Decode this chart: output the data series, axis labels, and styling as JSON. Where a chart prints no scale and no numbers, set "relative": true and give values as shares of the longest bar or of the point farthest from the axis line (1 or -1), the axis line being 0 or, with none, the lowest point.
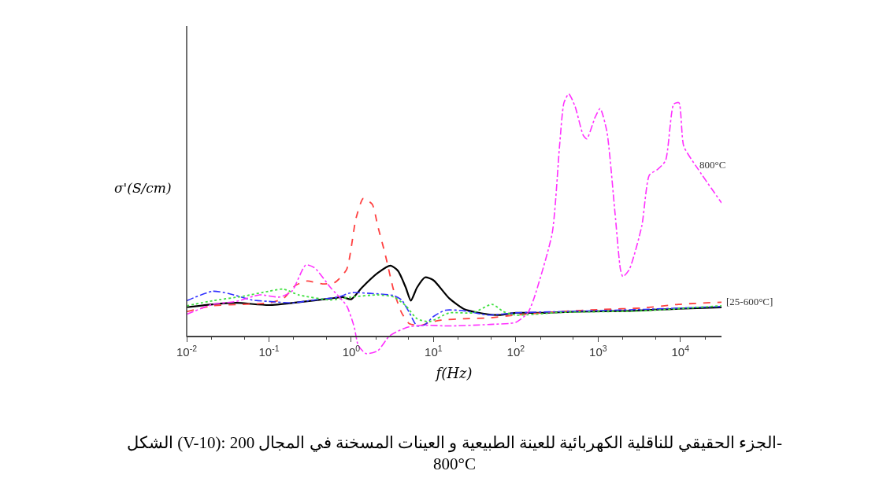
{
  "chart_data": {
    "type": "line",
    "relative": true,
    "xlabel": "f(Hz)",
    "ylabel": "σ'(S/cm)",
    "log": "x",
    "marker": "none",
    "xlim": [
      0.01,
      31623
    ],
    "xticks": [
      {
        "value": 0.01,
        "label": "10$^{-2}$"
      },
      {
        "value": 0.1,
        "label": "10$^{-1}$"
      },
      {
        "value": 1,
        "label": "10$^{0}$"
      },
      {
        "value": 10,
        "label": "10$^{1}$"
      },
      {
        "value": 100,
        "label": "10$^{2}$"
      },
      {
        "value": 1000,
        "label": "10$^{3}$"
      },
      {
        "value": 10000,
        "label": "10$^{4}$"
      }
    ],
    "series": [
      {
        "color": "#000000",
        "line_style": "solid",
        "x": [
          0.01,
          0.0207,
          0.04,
          0.1,
          0.23,
          0.56,
          0.78,
          1.0,
          1.35,
          2.1,
          3.0,
          3.7,
          4.6,
          5.3,
          6.3,
          7.9,
          10,
          15.6,
          24,
          46,
          63,
          100,
          217,
          525,
          2400,
          9500,
          31623
        ],
        "values": [
          0.122,
          0.134,
          0.14,
          0.131,
          0.143,
          0.158,
          0.164,
          0.155,
          0.203,
          0.263,
          0.293,
          0.272,
          0.203,
          0.149,
          0.203,
          0.245,
          0.233,
          0.158,
          0.113,
          0.093,
          0.09,
          0.099,
          0.099,
          0.104,
          0.107,
          0.116,
          0.122
        ]
      },
      {
        "color": "#ff4040",
        "line_style": "dashed",
        "x": [
          0.01,
          0.0207,
          0.048,
          0.1,
          0.15,
          0.21,
          0.29,
          0.45,
          0.63,
          0.88,
          1.14,
          1.4,
          1.8,
          2.1,
          2.6,
          3.3,
          4.1,
          5.1,
          7.1,
          8.9,
          12.4,
          24,
          46,
          100,
          350,
          1100,
          3400,
          9500,
          31623
        ],
        "values": [
          0.104,
          0.128,
          0.134,
          0.14,
          0.158,
          0.212,
          0.23,
          0.218,
          0.224,
          0.278,
          0.487,
          0.57,
          0.546,
          0.457,
          0.337,
          0.188,
          0.099,
          0.054,
          0.048,
          0.06,
          0.069,
          0.075,
          0.078,
          0.09,
          0.104,
          0.113,
          0.119,
          0.134,
          0.143
        ]
      },
      {
        "color": "#3030ff",
        "line_style": "dashdot",
        "x": [
          0.01,
          0.0207,
          0.032,
          0.062,
          0.1,
          0.19,
          0.36,
          0.7,
          1.0,
          1.7,
          3.3,
          4.1,
          5.1,
          6.3,
          7.9,
          10,
          14,
          24,
          46,
          100,
          350,
          3400,
          31623
        ],
        "values": [
          0.149,
          0.188,
          0.179,
          0.152,
          0.146,
          0.14,
          0.152,
          0.164,
          0.182,
          0.179,
          0.17,
          0.152,
          0.099,
          0.045,
          0.051,
          0.084,
          0.11,
          0.107,
          0.09,
          0.099,
          0.104,
          0.113,
          0.125
        ]
      },
      {
        "color": "#40e040",
        "line_style": "dotted",
        "x": [
          0.01,
          0.0207,
          0.048,
          0.1,
          0.15,
          0.23,
          0.56,
          1.0,
          2.1,
          3.3,
          4.6,
          6.3,
          8.9,
          15.6,
          30,
          51.6,
          71,
          100,
          350,
          3400,
          31623
        ],
        "values": [
          0.128,
          0.149,
          0.167,
          0.188,
          0.197,
          0.173,
          0.152,
          0.164,
          0.173,
          0.164,
          0.128,
          0.075,
          0.063,
          0.099,
          0.099,
          0.134,
          0.104,
          0.09,
          0.101,
          0.107,
          0.128
        ]
      },
      {
        "color": "#ff30ff",
        "line_style": "dashdot",
        "x": [
          0.01,
          0.0207,
          0.04,
          0.077,
          0.135,
          0.19,
          0.28,
          0.36,
          0.56,
          0.88,
          1.09,
          1.22,
          1.52,
          2.1,
          2.9,
          3.7,
          5.1,
          7.9,
          15.6,
          46,
          100,
          140,
          166,
          277,
          340,
          385,
          440,
          525,
          660,
          730,
          920,
          1060,
          1280,
          1600,
          1870,
          2000,
          2400,
          3400,
          4200,
          5300,
          6600,
          8300,
          9600,
          11000,
          16000,
          31623
        ],
        "values": [
          0.093,
          0.134,
          0.146,
          0.173,
          0.164,
          0.188,
          0.296,
          0.284,
          0.203,
          0.128,
          0.039,
          -0.036,
          -0.069,
          -0.057,
          0.003,
          0.024,
          0.042,
          0.048,
          0.045,
          0.051,
          0.06,
          0.099,
          0.158,
          0.427,
          0.785,
          0.964,
          1.0,
          0.949,
          0.83,
          0.815,
          0.904,
          0.94,
          0.845,
          0.516,
          0.278,
          0.248,
          0.278,
          0.457,
          0.666,
          0.69,
          0.725,
          0.958,
          0.964,
          0.785,
          0.696,
          0.552
        ]
      }
    ],
    "annotations": [
      "800°C",
      "[25-600°C]",
      "الشكل (V-10): الجزء الحقيقي للناقلية الكهربائية للعينة الطبيعية و العينات المسخنة في المجال 200-800°C"
    ]
  }
}
